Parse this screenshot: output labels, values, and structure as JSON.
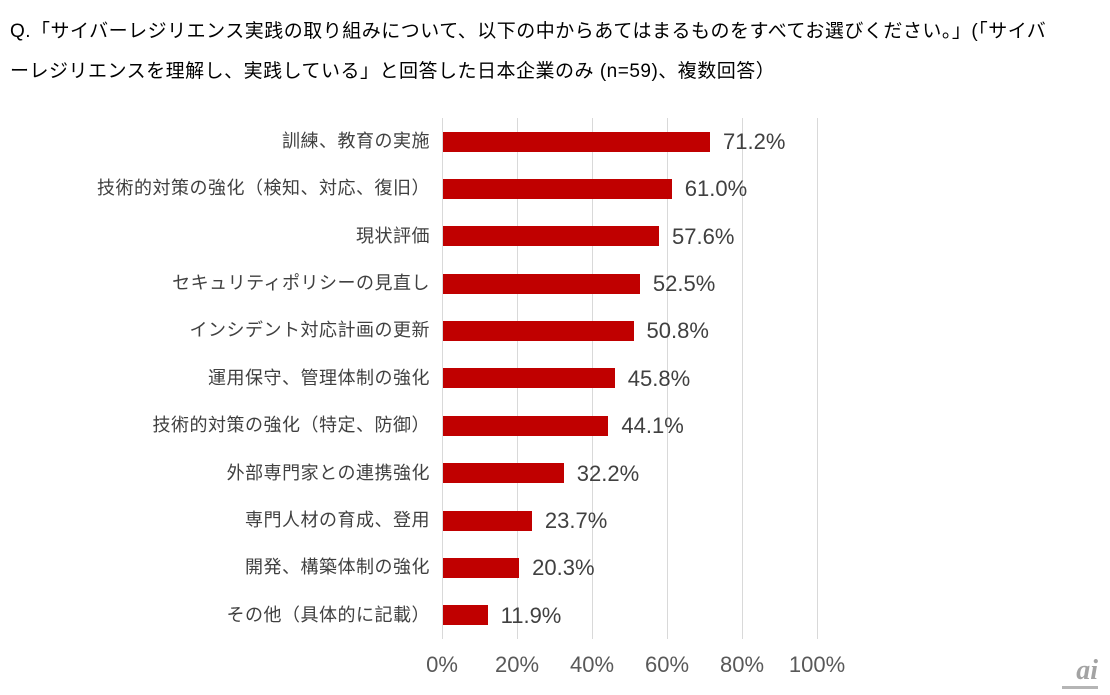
{
  "title": {
    "line1": "Q.「サイバーレジリエンス実践の取り組みについて、以下の中からあてはまるものをすべてお選びください。」(「サイバ",
    "line2": "ーレジリエンスを理解し、実践している」と回答した日本企業のみ (n=59)、複数回答）"
  },
  "chart_data": {
    "type": "bar",
    "orientation": "horizontal",
    "title": "",
    "xlabel": "",
    "ylabel": "",
    "categories": [
      "訓練、教育の実施",
      "技術的対策の強化（検知、対応、復旧）",
      "現状評価",
      "セキュリティポリシーの見直し",
      "インシデント対応計画の更新",
      "運用保守、管理体制の強化",
      "技術的対策の強化（特定、防御）",
      "外部専門家との連携強化",
      "専門人材の育成、登用",
      "開発、構築体制の強化",
      "その他（具体的に記載）"
    ],
    "values": [
      71.2,
      61.0,
      57.6,
      52.5,
      50.8,
      45.8,
      44.1,
      32.2,
      23.7,
      20.3,
      11.9
    ],
    "value_labels": [
      "71.2%",
      "61.0%",
      "57.6%",
      "52.5%",
      "50.8%",
      "45.8%",
      "44.1%",
      "32.2%",
      "23.7%",
      "20.3%",
      "11.9%"
    ],
    "xlim": [
      0,
      100
    ],
    "x_ticks": [
      "0%",
      "20%",
      "40%",
      "60%",
      "80%",
      "100%"
    ],
    "x_tick_values": [
      0,
      20,
      40,
      60,
      80,
      100
    ],
    "grid": true,
    "legend": "none",
    "bar_color": "#C00000",
    "gridline_color": "#D9D9D9",
    "category_label_color": "#404040",
    "value_label_color": "#404040",
    "axis_label_color": "#595959"
  },
  "footer": {
    "logo_text": "ai"
  }
}
